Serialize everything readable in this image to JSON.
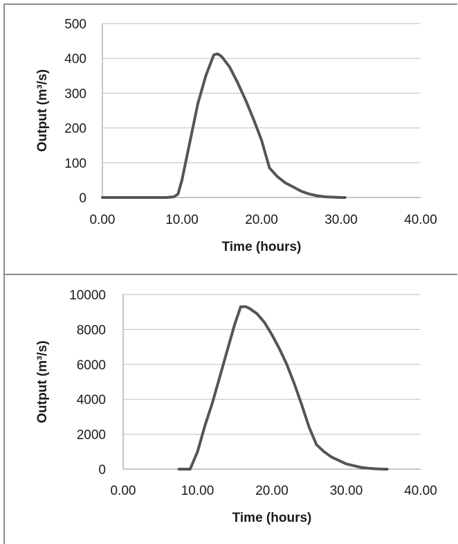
{
  "chart_data": [
    {
      "type": "line",
      "xlabel": "Time (hours)",
      "ylabel": "Output (m³/s)",
      "xlim": [
        0,
        40
      ],
      "ylim": [
        0,
        500
      ],
      "x_ticks": [
        "0.00",
        "10.00",
        "20.00",
        "30.00",
        "40.00"
      ],
      "y_ticks": [
        "0",
        "100",
        "200",
        "300",
        "400",
        "500"
      ],
      "grid": true,
      "legend": "none",
      "series": [
        {
          "color": "#555555",
          "x": [
            0,
            4,
            8,
            9,
            9.5,
            10,
            11,
            12,
            13,
            14,
            14.5,
            15,
            16,
            17,
            18,
            19,
            20,
            21,
            22,
            23,
            24,
            25,
            26,
            27,
            28,
            29,
            30,
            30.5
          ],
          "y": [
            0,
            0,
            0,
            2,
            10,
            50,
            160,
            270,
            350,
            410,
            413,
            405,
            375,
            330,
            280,
            225,
            165,
            85,
            60,
            42,
            30,
            18,
            10,
            5,
            2,
            1,
            0,
            0
          ]
        }
      ]
    },
    {
      "type": "line",
      "xlabel": "Time (hours)",
      "ylabel": "Output (m³/s)",
      "xlim": [
        0,
        40
      ],
      "ylim": [
        0,
        10000
      ],
      "x_ticks": [
        "0.00",
        "10.00",
        "20.00",
        "30.00",
        "40.00"
      ],
      "y_ticks": [
        "0",
        "2000",
        "4000",
        "6000",
        "8000",
        "10000"
      ],
      "grid": true,
      "legend": "none",
      "series": [
        {
          "color": "#555555",
          "x": [
            7.5,
            9,
            10,
            11,
            12,
            13,
            14,
            15,
            15.8,
            16.5,
            17,
            18,
            19,
            20,
            21,
            22,
            23,
            24,
            25,
            26,
            27,
            28,
            29,
            30,
            31,
            32,
            33,
            34,
            35,
            35.5
          ],
          "y": [
            0,
            0,
            1000,
            2500,
            3800,
            5300,
            6800,
            8300,
            9300,
            9300,
            9200,
            8900,
            8400,
            7700,
            6900,
            6000,
            4900,
            3700,
            2400,
            1400,
            1000,
            700,
            500,
            300,
            200,
            100,
            50,
            20,
            0,
            0
          ]
        }
      ]
    }
  ]
}
